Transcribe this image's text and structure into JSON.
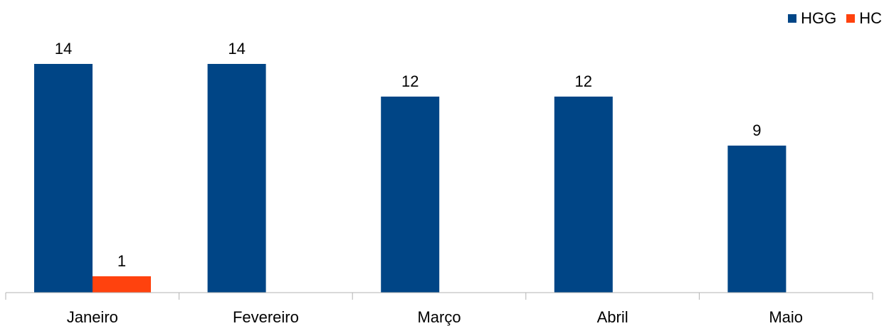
{
  "chart_data": {
    "type": "bar",
    "categories": [
      "Janeiro",
      "Fevereiro",
      "Março",
      "Abril",
      "Maio"
    ],
    "series": [
      {
        "name": "HGG",
        "color": "#004586",
        "values": [
          14,
          14,
          12,
          12,
          9
        ],
        "labels": [
          "14",
          "14",
          "12",
          "12",
          "9"
        ]
      },
      {
        "name": "HC",
        "color": "#ff420e",
        "values": [
          1,
          null,
          null,
          null,
          null
        ],
        "labels": [
          "1",
          "",
          "",
          "",
          ""
        ]
      }
    ],
    "ylim": [
      0,
      14
    ],
    "grid": false,
    "legend_position": "top-right",
    "axis_color": "#b3b3b3"
  }
}
